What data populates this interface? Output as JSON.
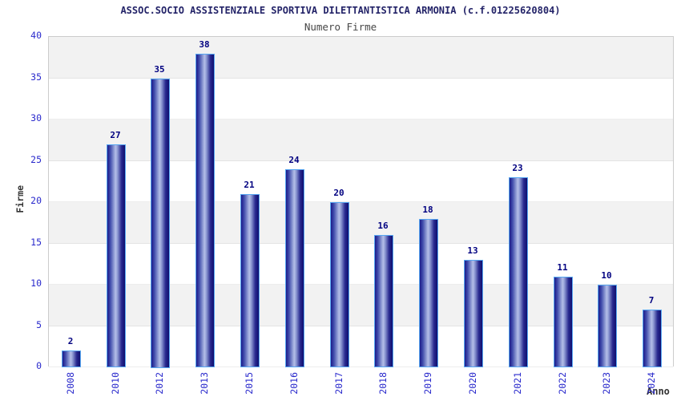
{
  "title": "ASSOC.SOCIO ASSISTENZIALE SPORTIVA DILETTANTISTICA ARMONIA (c.f.01225620804)",
  "subtitle": "Numero Firme",
  "chart_data": {
    "type": "bar",
    "title": "ASSOC.SOCIO ASSISTENZIALE SPORTIVA DILETTANTISTICA ARMONIA (c.f.01225620804)",
    "subtitle": "Numero Firme",
    "categories": [
      "2008",
      "2010",
      "2012",
      "2013",
      "2015",
      "2016",
      "2017",
      "2018",
      "2019",
      "2020",
      "2021",
      "2022",
      "2023",
      "2024"
    ],
    "values": [
      2,
      27,
      35,
      38,
      21,
      24,
      20,
      16,
      18,
      13,
      23,
      11,
      10,
      7
    ],
    "xlabel": "Anno",
    "ylabel": "Firme",
    "ylim": [
      0,
      40
    ],
    "ytick_step": 5,
    "ytick_labels": [
      "0",
      "5",
      "10",
      "15",
      "20",
      "25",
      "30",
      "35",
      "40"
    ],
    "legend": null,
    "grid": "alternating-horizontal-bands",
    "colors": {
      "title": "#232368",
      "subtitle": "#474747",
      "bar_border": "#57a7f2",
      "bar_dark": "#14147e",
      "bar_light": "#b4bee8",
      "value_label": "#000080",
      "tick_label": "#2929cc",
      "axis_title": "#333333",
      "band_gray": "#f2f2f2",
      "band_white": "#ffffff",
      "frame": "#cccccc"
    }
  }
}
